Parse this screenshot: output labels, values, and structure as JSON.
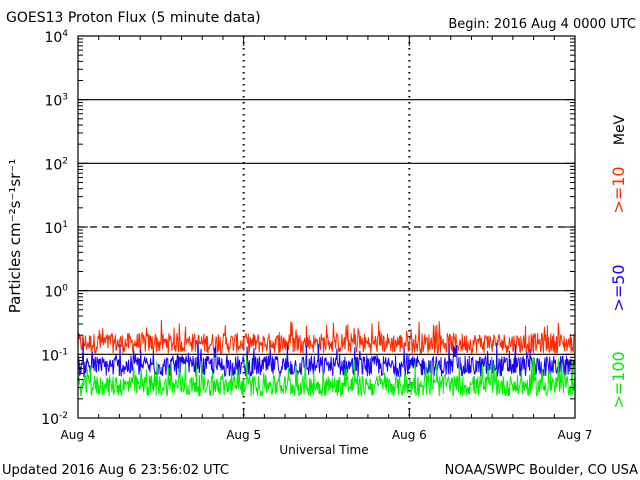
{
  "header": {
    "title": "GOES13 Proton Flux (5 minute data)",
    "begin": "Begin: 2016 Aug 4 0000 UTC"
  },
  "footer": {
    "updated": "Updated 2016 Aug  6 23:56:02 UTC",
    "credit": "NOAA/SWPC Boulder, CO USA"
  },
  "chart_data": {
    "type": "line",
    "title": "GOES13 Proton Flux (5 minute data)",
    "xlabel": "Universal Time",
    "ylabel": "Particles cm⁻²s⁻¹sr⁻¹",
    "y_scale": "log",
    "ylim": [
      0.01,
      10000
    ],
    "y_ticks": [
      {
        "value": 10000,
        "base": "10",
        "exp": "4"
      },
      {
        "value": 1000,
        "base": "10",
        "exp": "3"
      },
      {
        "value": 100,
        "base": "10",
        "exp": "2"
      },
      {
        "value": 10,
        "base": "10",
        "exp": "1"
      },
      {
        "value": 1,
        "base": "10",
        "exp": "0"
      },
      {
        "value": 0.1,
        "base": "10",
        "exp": "-1"
      },
      {
        "value": 0.01,
        "base": "10",
        "exp": "-2"
      }
    ],
    "x_ticks": [
      "Aug 4",
      "Aug 5",
      "Aug 6",
      "Aug 7"
    ],
    "x_range_days": [
      0,
      3
    ],
    "threshold_lines": [
      {
        "value": 1000,
        "style": "solid"
      },
      {
        "value": 100,
        "style": "solid"
      },
      {
        "value": 10,
        "style": "dashed"
      },
      {
        "value": 1,
        "style": "solid"
      },
      {
        "value": 0.1,
        "style": "solid"
      }
    ],
    "units_label": "MeV",
    "series": [
      {
        "name": ">=10",
        "color": "#ff2a00",
        "typical": 0.15,
        "min": 0.09,
        "max": 0.35
      },
      {
        "name": ">=50",
        "color": "#1a00ff",
        "typical": 0.065,
        "min": 0.04,
        "max": 0.16
      },
      {
        "name": ">=100",
        "color": "#00ee00",
        "typical": 0.032,
        "min": 0.022,
        "max": 0.09
      }
    ]
  }
}
